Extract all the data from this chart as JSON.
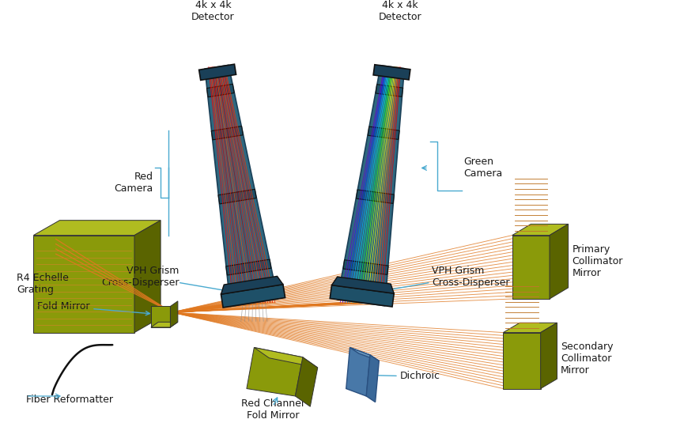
{
  "bg_color": "#ffffff",
  "olive_face": "#8a9a0a",
  "olive_side": "#5a6400",
  "olive_top": "#b0bc20",
  "teal_body": "#2e6880",
  "teal_dark": "#1a4058",
  "teal_ring": "#1e5068",
  "orange": "#e07820",
  "ann_color": "#4aaad0",
  "text_color": "#1a1a1a",
  "red_beam_colors": [
    "#ff0000",
    "#ff1a00",
    "#ff3300",
    "#ee1100",
    "#dd0000",
    "#ff2200",
    "#cc0000",
    "#ff4400",
    "#ee2200",
    "#bb0000",
    "#ff1100",
    "#dd2200",
    "#ff3300",
    "#ee0000",
    "#ff2800",
    "#cc1100",
    "#ff1500",
    "#ee3300",
    "#dd1100",
    "#ff2200"
  ],
  "spec_colors": [
    "#6600cc",
    "#4400ff",
    "#0033ff",
    "#0077ff",
    "#00aaff",
    "#00ccee",
    "#00ddaa",
    "#00ee55",
    "#44ff00",
    "#99ff00",
    "#ccff00",
    "#ffff00",
    "#ffcc00",
    "#ff9900",
    "#ff6600",
    "#ff3300",
    "#ff1100",
    "#ee0000",
    "#cc0000",
    "#aa0000"
  ],
  "labels": {
    "red_det": "4k x 4k\nDetector",
    "green_det": "4k x 4k\nDetector",
    "red_cam": "Red\nCamera",
    "green_cam": "Green\nCamera",
    "vph_red": "VPH Grism\nCross-Disperser",
    "vph_green": "VPH Grism\nCross-Disperser",
    "echelle": "R4 Echelle\nGrating",
    "fold": "Fold Mirror",
    "fiber": "Fiber Reformatter",
    "red_fold": "Red Channel\nFold Mirror",
    "dichroic": "Dichroic",
    "primary": "Primary\nCollimator\nMirror",
    "secondary": "Secondary\nCollimator\nMirror"
  }
}
